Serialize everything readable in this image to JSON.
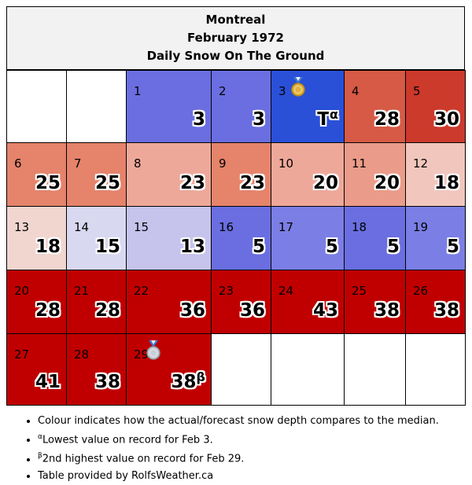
{
  "header": {
    "city": "Montreal",
    "month": "February 1972",
    "subtitle": "Daily Snow On The Ground"
  },
  "weeks": [
    [
      {
        "empty": true
      },
      {
        "empty": true
      },
      {
        "day": "1",
        "value": "3",
        "color": "#6a6ee0"
      },
      {
        "day": "2",
        "value": "3",
        "color": "#6a6ee0"
      },
      {
        "day": "3",
        "value": "T",
        "sup": "α",
        "color": "#2a50d8",
        "medal": "gold"
      },
      {
        "day": "4",
        "value": "28",
        "color": "#d65a45"
      },
      {
        "day": "5",
        "value": "30",
        "color": "#cc3a2c"
      }
    ],
    [
      {
        "day": "6",
        "value": "25",
        "color": "#e5836b"
      },
      {
        "day": "7",
        "value": "25",
        "color": "#e5836b"
      },
      {
        "day": "8",
        "value": "23",
        "color": "#eea899"
      },
      {
        "day": "9",
        "value": "23",
        "color": "#e5836b"
      },
      {
        "day": "10",
        "value": "20",
        "color": "#eea899"
      },
      {
        "day": "11",
        "value": "20",
        "color": "#eb9b89"
      },
      {
        "day": "12",
        "value": "18",
        "color": "#f1c7bd"
      }
    ],
    [
      {
        "day": "13",
        "value": "18",
        "color": "#f0d6cf"
      },
      {
        "day": "14",
        "value": "15",
        "color": "#d9d8f1"
      },
      {
        "day": "15",
        "value": "13",
        "color": "#c6c4ec"
      },
      {
        "day": "16",
        "value": "5",
        "color": "#6a6ee0"
      },
      {
        "day": "17",
        "value": "5",
        "color": "#7b7ee4"
      },
      {
        "day": "18",
        "value": "5",
        "color": "#6a6ee0"
      },
      {
        "day": "19",
        "value": "5",
        "color": "#7b7ee4"
      }
    ],
    [
      {
        "day": "20",
        "value": "28",
        "color": "#c00000"
      },
      {
        "day": "21",
        "value": "28",
        "color": "#c00000"
      },
      {
        "day": "22",
        "value": "36",
        "color": "#c00000"
      },
      {
        "day": "23",
        "value": "36",
        "color": "#c00000"
      },
      {
        "day": "24",
        "value": "43",
        "color": "#c00000"
      },
      {
        "day": "25",
        "value": "38",
        "color": "#c00000"
      },
      {
        "day": "26",
        "value": "38",
        "color": "#c00000"
      }
    ],
    [
      {
        "day": "27",
        "value": "41",
        "color": "#c00000"
      },
      {
        "day": "28",
        "value": "38",
        "color": "#c00000"
      },
      {
        "day": "29",
        "value": "38",
        "sup": "β",
        "color": "#c00000",
        "medal": "silver"
      },
      {
        "empty": true
      },
      {
        "empty": true
      },
      {
        "empty": true
      },
      {
        "empty": true
      }
    ]
  ],
  "notes": {
    "colour": "Colour indicates how the actual/forecast snow depth compares to the median.",
    "alpha_mark": "α",
    "alpha_text": "Lowest value on record for Feb 3.",
    "beta_mark": "β",
    "beta_text": "2nd highest value on record for Feb 29.",
    "credit": "Table provided by RolfsWeather.ca"
  }
}
